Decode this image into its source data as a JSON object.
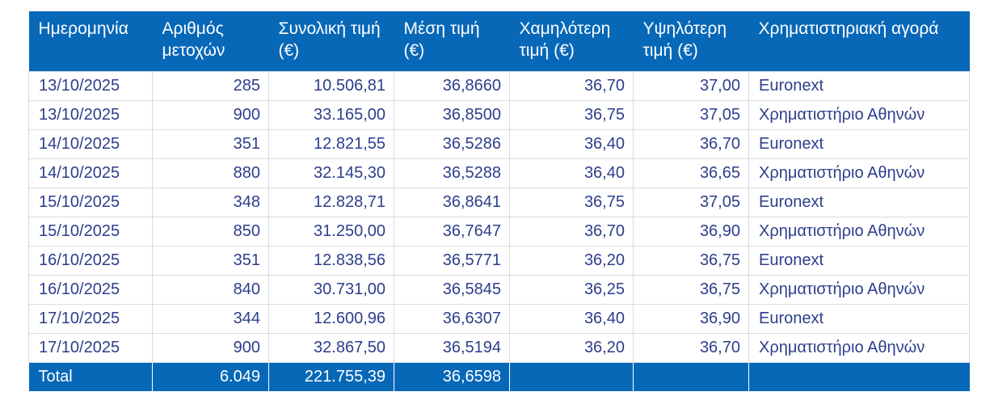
{
  "table": {
    "headers": [
      "Ημερομηνία",
      "Αριθμός μετοχών",
      "Συνολική τιμή  (€)",
      "Μέση τιμή (€)",
      "Χαμηλότερη τιμή (€)",
      "Υψηλότερη τιμή (€)",
      "Χρηματιστηριακή αγορά"
    ],
    "rows": [
      [
        "13/10/2025",
        "285",
        "10.506,81",
        "36,8660",
        "36,70",
        "37,00",
        "Euronext"
      ],
      [
        "13/10/2025",
        "900",
        "33.165,00",
        "36,8500",
        "36,75",
        "37,05",
        "Χρηματιστήριο Αθηνών"
      ],
      [
        "14/10/2025",
        "351",
        "12.821,55",
        "36,5286",
        "36,40",
        "36,70",
        "Euronext"
      ],
      [
        "14/10/2025",
        "880",
        "32.145,30",
        "36,5288",
        "36,40",
        "36,65",
        "Χρηματιστήριο Αθηνών"
      ],
      [
        "15/10/2025",
        "348",
        "12.828,71",
        "36,8641",
        "36,75",
        "37,05",
        "Euronext"
      ],
      [
        "15/10/2025",
        "850",
        "31.250,00",
        "36,7647",
        "36,70",
        "36,90",
        "Χρηματιστήριο Αθηνών"
      ],
      [
        "16/10/2025",
        "351",
        "12.838,56",
        "36,5771",
        "36,20",
        "36,75",
        "Euronext"
      ],
      [
        "16/10/2025",
        "840",
        "30.731,00",
        "36,5845",
        "36,25",
        "36,75",
        "Χρηματιστήριο Αθηνών"
      ],
      [
        "17/10/2025",
        "344",
        "12.600,96",
        "36,6307",
        "36,40",
        "36,90",
        "Euronext"
      ],
      [
        "17/10/2025",
        "900",
        "32.867,50",
        "36,5194",
        "36,20",
        "36,70",
        "Χρηματιστήριο Αθηνών"
      ]
    ],
    "total": {
      "label": "Total",
      "shares": "6.049",
      "total_price": "221.755,39",
      "avg_price": "36,6598"
    }
  },
  "colors": {
    "header_bg": "#0868b8",
    "body_text": "#2d3e8c",
    "grid": "#d7dbe2"
  }
}
